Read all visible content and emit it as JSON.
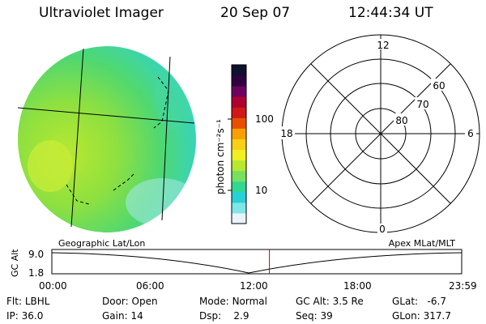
{
  "header": {
    "title": "Ultraviolet Imager",
    "date": "20 Sep 07",
    "time": "12:44:34 UT"
  },
  "colorbar": {
    "label": "photon cm⁻²s⁻¹",
    "tick_labels": [
      "100",
      "10"
    ],
    "scale": "log",
    "colors": [
      "#e8f4f8",
      "#7fe6e8",
      "#28d0d8",
      "#30d890",
      "#78e060",
      "#b8e830",
      "#f0f020",
      "#f8d018",
      "#f8a000",
      "#e85000",
      "#d01818",
      "#b00030",
      "#700060",
      "#300040",
      "#101030"
    ]
  },
  "polar_plot": {
    "hour_labels": [
      "12",
      "18",
      "6",
      "0"
    ],
    "lat_labels": [
      "60",
      "70",
      "80"
    ]
  },
  "gc_alt_plot": {
    "ylabel": "GC Alt",
    "ytick_labels": [
      "9.0",
      "1.8"
    ],
    "left_title": "Geographic Lat/Lon",
    "right_title": "Apex MLat/MLT",
    "xtick_labels": [
      "00:00",
      "06:00",
      "12:00",
      "18:00",
      "23:59"
    ],
    "current_time_hours": 12.74
  },
  "status": {
    "row1": [
      {
        "label": "Flt:",
        "value": "LBHL"
      },
      {
        "label": "Door:",
        "value": "Open"
      },
      {
        "label": "Mode:",
        "value": "Normal"
      },
      {
        "label": "GC Alt:",
        "value": "3.5 Re"
      },
      {
        "label": "GLat:",
        "value": "-6.7"
      }
    ],
    "row2": [
      {
        "label": "IP:",
        "value": "36.0"
      },
      {
        "label": "Gain:",
        "value": "14"
      },
      {
        "label": "Dsp:",
        "value": "2.9"
      },
      {
        "label": "Seq:",
        "value": "39"
      },
      {
        "label": "GLon:",
        "value": "317.7"
      }
    ]
  }
}
